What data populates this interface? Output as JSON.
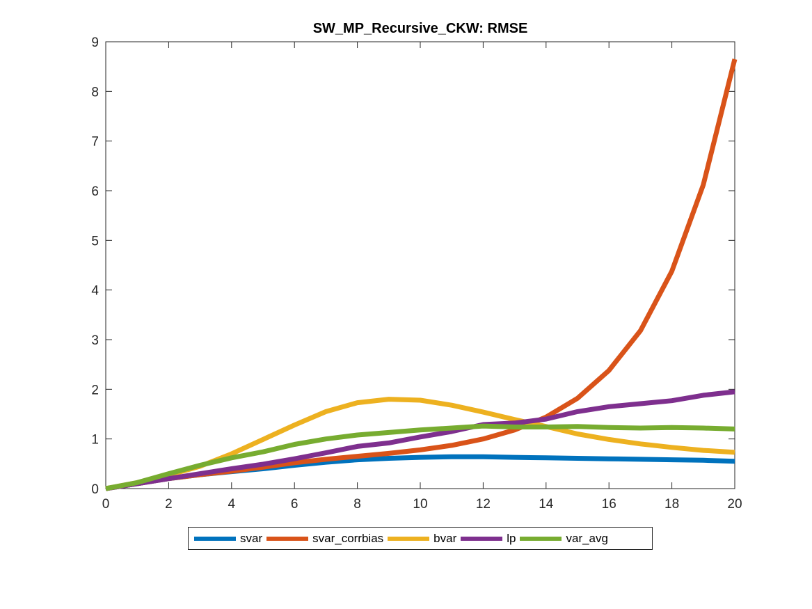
{
  "chart_data": {
    "type": "line",
    "title": "SW_MP_Recursive_CKW: RMSE",
    "xlabel": "",
    "ylabel": "",
    "xlim": [
      0,
      20
    ],
    "ylim": [
      0,
      9
    ],
    "xticks": [
      0,
      2,
      4,
      6,
      8,
      10,
      12,
      14,
      16,
      18,
      20
    ],
    "yticks": [
      0,
      1,
      2,
      3,
      4,
      5,
      6,
      7,
      8,
      9
    ],
    "grid": false,
    "legend_position": "bottom-outside",
    "x": [
      0,
      1,
      2,
      3,
      4,
      5,
      6,
      7,
      8,
      9,
      10,
      11,
      12,
      13,
      14,
      15,
      16,
      17,
      18,
      19,
      20
    ],
    "series": [
      {
        "name": "svar",
        "color": "#0072BD",
        "values": [
          0.0,
          0.1,
          0.2,
          0.28,
          0.34,
          0.4,
          0.47,
          0.53,
          0.58,
          0.61,
          0.63,
          0.64,
          0.64,
          0.63,
          0.62,
          0.61,
          0.6,
          0.59,
          0.58,
          0.57,
          0.55
        ]
      },
      {
        "name": "svar_corrbias",
        "color": "#D95319",
        "values": [
          0.0,
          0.1,
          0.2,
          0.28,
          0.35,
          0.43,
          0.52,
          0.59,
          0.65,
          0.71,
          0.78,
          0.87,
          1.0,
          1.18,
          1.44,
          1.82,
          2.38,
          3.18,
          4.38,
          6.12,
          8.65
        ]
      },
      {
        "name": "bvar",
        "color": "#EDB120",
        "values": [
          0.0,
          0.12,
          0.27,
          0.45,
          0.7,
          0.99,
          1.28,
          1.55,
          1.73,
          1.8,
          1.78,
          1.68,
          1.54,
          1.39,
          1.25,
          1.1,
          0.99,
          0.9,
          0.83,
          0.77,
          0.73
        ]
      },
      {
        "name": "lp",
        "color": "#7E2F8E",
        "values": [
          0.0,
          0.1,
          0.2,
          0.3,
          0.4,
          0.49,
          0.6,
          0.72,
          0.85,
          0.92,
          1.04,
          1.15,
          1.29,
          1.32,
          1.4,
          1.55,
          1.65,
          1.71,
          1.77,
          1.88,
          1.95
        ]
      },
      {
        "name": "var_avg",
        "color": "#77AC30",
        "values": [
          0.0,
          0.12,
          0.3,
          0.47,
          0.62,
          0.74,
          0.89,
          1.0,
          1.08,
          1.13,
          1.18,
          1.22,
          1.26,
          1.24,
          1.24,
          1.25,
          1.23,
          1.22,
          1.23,
          1.22,
          1.2
        ]
      }
    ]
  }
}
